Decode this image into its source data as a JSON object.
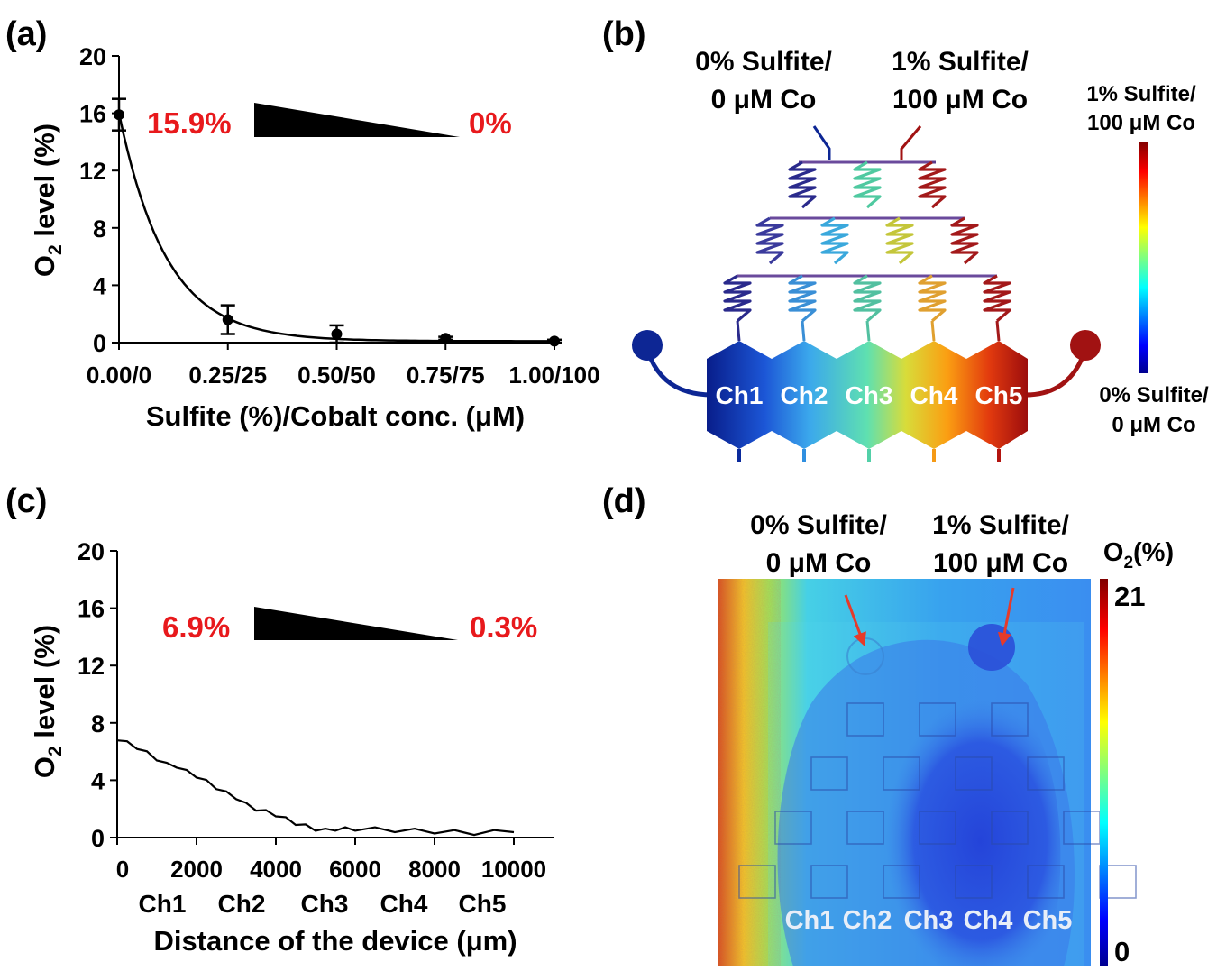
{
  "panels": {
    "a": {
      "label": "(a)"
    },
    "b": {
      "label": "(b)"
    },
    "c": {
      "label": "(c)"
    },
    "d": {
      "label": "(d)"
    }
  },
  "chart_data": [
    {
      "panel": "a",
      "type": "scatter",
      "xlabel": "Sulfite (%)/Cobalt conc. (μM)",
      "ylabel_main": "O",
      "ylabel_sub": "2",
      "ylabel_rest": " level (%)",
      "x_tick_labels": [
        "0.00/0",
        "0.25/25",
        "0.50/50",
        "0.75/75",
        "1.00/100"
      ],
      "x_tick_values": [
        0,
        0.25,
        0.5,
        0.75,
        1.0
      ],
      "xlim": [
        0,
        1.0
      ],
      "y_ticks": [
        0,
        4,
        8,
        12,
        16,
        20
      ],
      "ylim": [
        0,
        20
      ],
      "points": [
        {
          "x": 0,
          "y": 15.9,
          "err": 1.1
        },
        {
          "x": 0.25,
          "y": 1.6,
          "err": 1.0
        },
        {
          "x": 0.5,
          "y": 0.6,
          "err": 0.6
        },
        {
          "x": 0.75,
          "y": 0.3,
          "err": 0.1
        },
        {
          "x": 1.0,
          "y": 0.1,
          "err": 0.1
        }
      ],
      "fit_curve": "exponential decay",
      "gradient_left_label": "15.9%",
      "gradient_right_label": "0%",
      "label_color": "#e8191c"
    },
    {
      "panel": "c",
      "type": "line",
      "xlabel": "Distance of the device (μm)",
      "ylabel_main": "O",
      "ylabel_sub": "2",
      "ylabel_rest": " level (%)",
      "x_ticks": [
        0,
        2000,
        4000,
        6000,
        8000,
        10000
      ],
      "xlim": [
        0,
        11000
      ],
      "y_ticks": [
        0,
        4,
        8,
        12,
        16,
        20
      ],
      "ylim": [
        0,
        20
      ],
      "channel_labels": [
        "Ch1",
        "Ch2",
        "Ch3",
        "Ch4",
        "Ch5"
      ],
      "series": [
        {
          "x": [
            0,
            250,
            500,
            750,
            1000,
            1250,
            1500,
            1750,
            2000,
            2250,
            2500,
            2750,
            3000,
            3250,
            3500,
            3750,
            4000,
            4250,
            4500,
            4750,
            5000,
            5250,
            5500,
            5750,
            6000,
            6500,
            7000,
            7500,
            8000,
            8500,
            9000,
            9500,
            10000
          ],
          "values": [
            6.9,
            6.6,
            6.3,
            5.9,
            5.5,
            5.1,
            5.0,
            4.6,
            4.3,
            3.9,
            3.5,
            3.1,
            2.8,
            2.3,
            2.0,
            1.8,
            1.6,
            1.3,
            1.0,
            0.8,
            0.6,
            0.5,
            0.6,
            0.6,
            0.6,
            0.6,
            0.5,
            0.5,
            0.4,
            0.4,
            0.3,
            0.4,
            0.5
          ]
        }
      ],
      "gradient_left_label": "6.9%",
      "gradient_right_label": "0.3%",
      "label_color": "#e8191c"
    }
  ],
  "diagram_b": {
    "inlet_left": [
      "0% Sulfite/",
      "0 μM Co"
    ],
    "inlet_right": [
      "1% Sulfite/",
      "100 μM Co"
    ],
    "colorbar_top": [
      "1% Sulfite/",
      "100 μM Co"
    ],
    "colorbar_bottom": [
      "0% Sulfite/",
      "0 μM Co"
    ],
    "channels": [
      "Ch1",
      "Ch2",
      "Ch3",
      "Ch4",
      "Ch5"
    ],
    "channel_colors": [
      "#0a2a9c",
      "#2f8fe0",
      "#52d0a8",
      "#f59a16",
      "#b3140f"
    ],
    "left_port_color": "#0d2694",
    "right_port_color": "#a11212"
  },
  "image_d": {
    "inlet_left": [
      "0% Sulfite/",
      "0 μM Co"
    ],
    "inlet_right": [
      "1% Sulfite/",
      "100 μM Co"
    ],
    "colorbar_title_main": "O",
    "colorbar_title_sub": "2",
    "colorbar_title_rest": "(%)",
    "colorbar_max": "21",
    "colorbar_min": "0",
    "channels": [
      "Ch1",
      "Ch2",
      "Ch3",
      "Ch4",
      "Ch5"
    ],
    "arrow_color": "#e63a2a"
  }
}
